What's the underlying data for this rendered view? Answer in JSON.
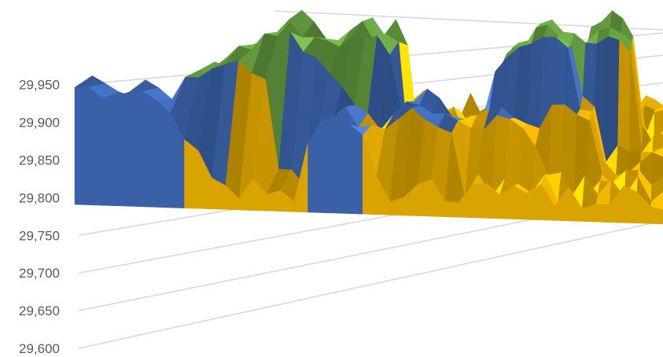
{
  "chart_data": {
    "type": "surface-3d",
    "yaxis": {
      "ticks": [
        29600,
        29650,
        29700,
        29750,
        29800,
        29850,
        29900,
        29950
      ],
      "tick_labels": [
        "29,600",
        "29,650",
        "29,700",
        "29,750",
        "29,800",
        "29,850",
        "29,900",
        "29,950"
      ],
      "range": [
        29600,
        29960
      ]
    },
    "bands": [
      {
        "from": 29600,
        "to": 29750,
        "color": "#7f7f7f"
      },
      {
        "from": 29750,
        "to": 29850,
        "color": "#ffc000"
      },
      {
        "from": 29850,
        "to": 29900,
        "color": "#4472c4"
      },
      {
        "from": 29900,
        "to": 29960,
        "color": "#70ad47"
      }
    ],
    "peaks": [
      {
        "row": 0,
        "col": 0,
        "value": 29905,
        "width": 3
      },
      {
        "row": 0,
        "col": 4,
        "value": 29900,
        "width": 3
      },
      {
        "row": 1,
        "col": 7,
        "value": 29850,
        "width": 2
      },
      {
        "row": 2,
        "col": 10,
        "value": 29930,
        "width": 3
      },
      {
        "row": 3,
        "col": 13,
        "value": 29960,
        "width": 3
      },
      {
        "row": 3,
        "col": 16,
        "value": 29920,
        "width": 2
      },
      {
        "row": 4,
        "col": 18,
        "value": 29950,
        "width": 2
      },
      {
        "row": 4,
        "col": 20,
        "value": 29940,
        "width": 1
      },
      {
        "row": 5,
        "col": 31,
        "value": 29925,
        "width": 2
      },
      {
        "row": 5,
        "col": 33,
        "value": 29945,
        "width": 2
      },
      {
        "row": 7,
        "col": 38,
        "value": 29930,
        "width": 2
      },
      {
        "row": 1,
        "col": 19,
        "value": 29870,
        "width": 2
      },
      {
        "row": 2,
        "col": 24,
        "value": 29875,
        "width": 3
      },
      {
        "row": 3,
        "col": 30,
        "value": 29860,
        "width": 3
      },
      {
        "row": 4,
        "col": 35,
        "value": 29870,
        "width": 2
      }
    ]
  }
}
